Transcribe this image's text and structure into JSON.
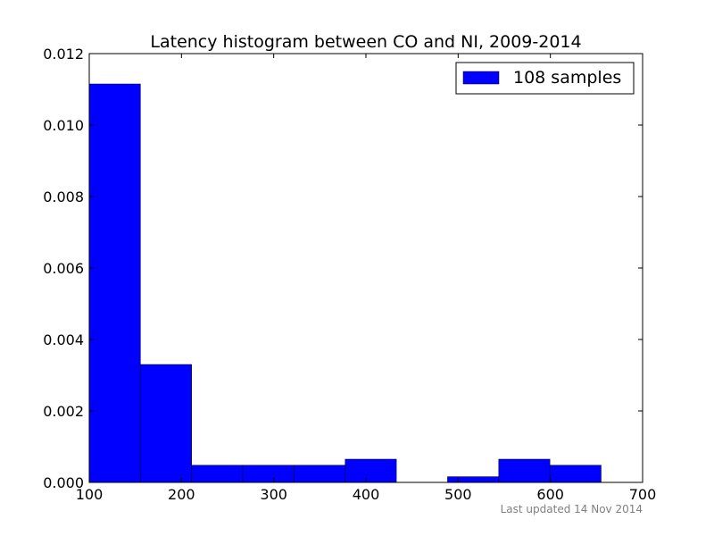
{
  "chart_data": {
    "type": "bar",
    "title": "Latency histogram between CO and NI, 2009-2014",
    "xlabel": "",
    "ylabel": "",
    "xlim": [
      100,
      700
    ],
    "ylim": [
      0,
      0.012
    ],
    "x_ticks": [
      100,
      200,
      300,
      400,
      500,
      600,
      700
    ],
    "y_ticks": [
      0.0,
      0.002,
      0.004,
      0.006,
      0.008,
      0.01,
      0.012
    ],
    "x_tick_labels": [
      "100",
      "200",
      "300",
      "400",
      "500",
      "600",
      "700"
    ],
    "y_tick_labels": [
      "0.000",
      "0.002",
      "0.004",
      "0.006",
      "0.008",
      "0.010",
      "0.012"
    ],
    "grid": false,
    "legend_position": "top-right",
    "series": [
      {
        "name": "108 samples",
        "color": "#0000ff",
        "bins": [
          {
            "start": 100,
            "end": 155.5,
            "value": 0.01115
          },
          {
            "start": 155.5,
            "end": 211,
            "value": 0.0033
          },
          {
            "start": 211,
            "end": 266.5,
            "value": 0.00048
          },
          {
            "start": 266.5,
            "end": 322,
            "value": 0.00048
          },
          {
            "start": 322,
            "end": 377.5,
            "value": 0.00048
          },
          {
            "start": 377.5,
            "end": 433,
            "value": 0.00065
          },
          {
            "start": 433,
            "end": 488.5,
            "value": 0
          },
          {
            "start": 488.5,
            "end": 544,
            "value": 0.00016
          },
          {
            "start": 544,
            "end": 599.5,
            "value": 0.00065
          },
          {
            "start": 599.5,
            "end": 655,
            "value": 0.00048
          }
        ]
      }
    ]
  },
  "footer": {
    "text": "Last updated 14 Nov 2014"
  }
}
